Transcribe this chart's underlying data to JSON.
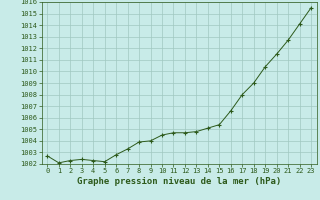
{
  "x": [
    0,
    1,
    2,
    3,
    4,
    5,
    6,
    7,
    8,
    9,
    10,
    11,
    12,
    13,
    14,
    15,
    16,
    17,
    18,
    19,
    20,
    21,
    22,
    23
  ],
  "y": [
    1002.7,
    1002.1,
    1002.3,
    1002.4,
    1002.3,
    1002.2,
    1002.8,
    1003.3,
    1003.9,
    1004.0,
    1004.5,
    1004.7,
    1004.7,
    1004.8,
    1005.1,
    1005.4,
    1006.6,
    1008.0,
    1009.0,
    1010.4,
    1011.5,
    1012.7,
    1014.1,
    1015.5
  ],
  "line_color": "#2d5a1b",
  "marker": "+",
  "marker_size": 3.5,
  "bg_color": "#c8ebe8",
  "grid_color": "#a0c8c0",
  "title": "Graphe pression niveau de la mer (hPa)",
  "ylim": [
    1002,
    1016
  ],
  "xlim_min": -0.5,
  "xlim_max": 23.5,
  "yticks": [
    1002,
    1003,
    1004,
    1005,
    1006,
    1007,
    1008,
    1009,
    1010,
    1011,
    1012,
    1013,
    1014,
    1015,
    1016
  ],
  "xticks": [
    0,
    1,
    2,
    3,
    4,
    5,
    6,
    7,
    8,
    9,
    10,
    11,
    12,
    13,
    14,
    15,
    16,
    17,
    18,
    19,
    20,
    21,
    22,
    23
  ],
  "tick_fontsize": 5,
  "title_fontsize": 6.5,
  "title_fontweight": "bold"
}
